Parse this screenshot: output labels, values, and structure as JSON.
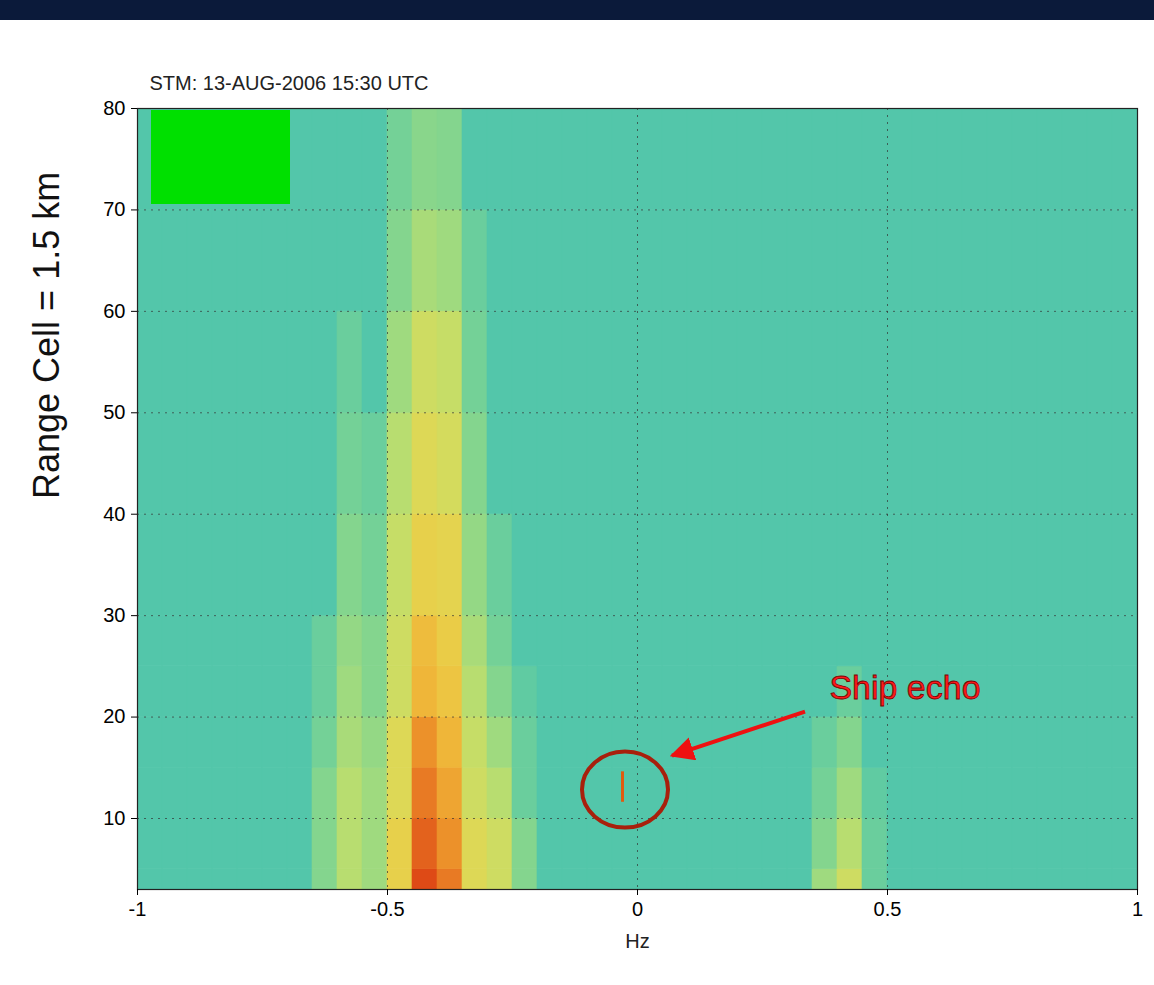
{
  "chart_data": {
    "type": "heatmap",
    "title": "STM: 13-AUG-2006 15:30 UTC",
    "x_label": "Hz",
    "y_label": "Range Cell = 1.5 km",
    "xlim": [
      -1,
      1
    ],
    "xticks": [
      -1,
      -0.5,
      0,
      0.5,
      1
    ],
    "ylim": [
      3,
      80
    ],
    "yticks": [
      10,
      20,
      30,
      40,
      50,
      60,
      70,
      80
    ],
    "grid": true,
    "x_bins": [
      -1,
      -0.95,
      -0.9,
      -0.85,
      -0.8,
      -0.75,
      -0.7,
      -0.65,
      -0.6,
      -0.55,
      -0.5,
      -0.45,
      -0.4,
      -0.35,
      -0.3,
      -0.25,
      -0.2,
      -0.15,
      -0.1,
      -0.05,
      0,
      0.05,
      0.1,
      0.15,
      0.2,
      0.25,
      0.3,
      0.35,
      0.4,
      0.45,
      0.5,
      0.55,
      0.6,
      0.65,
      0.7,
      0.75,
      0.8,
      0.85,
      0.9,
      0.95,
      1
    ],
    "y_bins": [
      3,
      5,
      10,
      15,
      20,
      25,
      30,
      40,
      50,
      60,
      70,
      80
    ],
    "cells": [
      [
        2.5,
        2.5,
        2.5,
        2.5,
        2.5,
        2.5,
        2.5,
        3.5,
        4.5,
        4,
        6,
        9.5,
        8.5,
        5.5,
        5,
        3.5,
        2.5,
        2.5,
        2.5,
        2.5,
        2.5,
        2.5,
        2.5,
        2.5,
        2.5,
        2.5,
        2.5,
        4,
        5,
        3,
        2.5,
        2.5,
        2.5,
        2.5,
        2.5,
        2.5,
        2.5,
        2.5,
        2.5,
        2.5
      ],
      [
        2.5,
        2.5,
        2.5,
        2.5,
        2.5,
        2.5,
        2.5,
        3.5,
        4.5,
        4,
        6,
        9,
        8,
        5.5,
        5,
        3.5,
        2.5,
        2.5,
        2.5,
        2.5,
        2.5,
        2.5,
        2.5,
        2.5,
        2.5,
        2.5,
        2.5,
        3.5,
        4.5,
        3,
        2.5,
        2.5,
        2.5,
        2.5,
        2.5,
        2.5,
        2.5,
        2.5,
        2.5,
        2.5
      ],
      [
        2.5,
        2.5,
        2.5,
        2.5,
        2.5,
        2.5,
        2.5,
        3.5,
        4.5,
        4,
        5.5,
        8.5,
        7.5,
        5,
        4.5,
        3,
        2.5,
        2.5,
        2.5,
        2.5,
        2.5,
        2.5,
        2.5,
        2.5,
        2.5,
        2.5,
        2.5,
        3.2,
        4,
        2.8,
        2.5,
        2.5,
        2.5,
        2.5,
        2.5,
        2.5,
        2.5,
        2.5,
        2.5,
        2.5
      ],
      [
        2.5,
        2.5,
        2.5,
        2.5,
        2.5,
        2.5,
        2.5,
        3.2,
        4.2,
        3.8,
        5.5,
        8,
        7,
        4.8,
        4,
        3,
        2.5,
        2.5,
        2.5,
        2.5,
        2.5,
        2.5,
        2.5,
        2.5,
        2.5,
        2.5,
        2.5,
        3,
        3.5,
        2.5,
        2.5,
        2.5,
        2.5,
        2.5,
        2.5,
        2.5,
        2.5,
        2.5,
        2.5,
        2.5
      ],
      [
        2.5,
        2.5,
        2.5,
        2.5,
        2.5,
        2.5,
        2.5,
        3,
        4,
        3.5,
        5,
        7,
        6.5,
        4.5,
        3.5,
        2.8,
        2.5,
        2.5,
        2.5,
        2.5,
        2.5,
        2.5,
        2.5,
        2.5,
        2.5,
        2.5,
        2.5,
        2.5,
        3,
        2.5,
        2.5,
        2.5,
        2.5,
        2.5,
        2.5,
        2.5,
        2.5,
        2.5,
        2.5,
        2.5
      ],
      [
        2.5,
        2.5,
        2.5,
        2.5,
        2.5,
        2.5,
        2.5,
        3,
        3.8,
        3.5,
        5,
        6.8,
        6.2,
        4.2,
        3.2,
        2.5,
        2.5,
        2.5,
        2.5,
        2.5,
        2.5,
        2.5,
        2.5,
        2.5,
        2.5,
        2.5,
        2.5,
        2.5,
        2.5,
        2.5,
        2.5,
        2.5,
        2.5,
        2.5,
        2.5,
        2.5,
        2.5,
        2.5,
        2.5,
        2.5
      ],
      [
        2.5,
        2.5,
        2.5,
        2.5,
        2.5,
        2.5,
        2.5,
        2.5,
        3.5,
        3.2,
        4.8,
        6,
        5.8,
        3.8,
        3,
        2.5,
        2.5,
        2.5,
        2.5,
        2.5,
        2.5,
        2.5,
        2.5,
        2.5,
        2.5,
        2.5,
        2.5,
        2.5,
        2.5,
        2.5,
        2.5,
        2.5,
        2.5,
        2.5,
        2.5,
        2.5,
        2.5,
        2.5,
        2.5,
        2.5
      ],
      [
        2.5,
        2.5,
        2.5,
        2.5,
        2.5,
        2.5,
        2.5,
        2.5,
        3.2,
        3,
        4.5,
        5.5,
        5.2,
        3.5,
        2.5,
        2.5,
        2.5,
        2.5,
        2.5,
        2.5,
        2.5,
        2.5,
        2.5,
        2.5,
        2.5,
        2.5,
        2.5,
        2.5,
        2.5,
        2.5,
        2.5,
        2.5,
        2.5,
        2.5,
        2.5,
        2.5,
        2.5,
        2.5,
        2.5,
        2.5
      ],
      [
        2.5,
        2.5,
        2.5,
        2.5,
        2.5,
        2.5,
        2.5,
        2.5,
        3,
        2.5,
        4,
        5,
        4.8,
        3.2,
        2.5,
        2.5,
        2.5,
        2.5,
        2.5,
        2.5,
        2.5,
        2.5,
        2.5,
        2.5,
        2.5,
        2.5,
        2.5,
        2.5,
        2.5,
        2.5,
        2.5,
        2.5,
        2.5,
        2.5,
        2.5,
        2.5,
        2.5,
        2.5,
        2.5,
        2.5
      ],
      [
        2.5,
        2.5,
        2.5,
        2.5,
        2.5,
        2.5,
        2.5,
        2.5,
        2.5,
        2.5,
        3.5,
        4.2,
        4,
        3,
        2.5,
        2.5,
        2.5,
        2.5,
        2.5,
        2.5,
        2.5,
        2.5,
        2.5,
        2.5,
        2.5,
        2.5,
        2.5,
        2.5,
        2.5,
        2.5,
        2.5,
        2.5,
        2.5,
        2.5,
        2.5,
        2.5,
        2.5,
        2.5,
        2.5,
        2.5
      ],
      [
        2.5,
        2.5,
        2.5,
        2.5,
        2.5,
        2.5,
        2.5,
        2.5,
        2.5,
        2.5,
        3.2,
        3.6,
        3.5,
        2.5,
        2.5,
        2.5,
        2.5,
        2.5,
        2.5,
        2.5,
        2.5,
        2.5,
        2.5,
        2.5,
        2.5,
        2.5,
        2.5,
        2.5,
        2.5,
        2.5,
        2.5,
        2.5,
        2.5,
        2.5,
        2.5,
        2.5,
        2.5,
        2.5,
        2.5,
        2.5
      ]
    ],
    "color_range": [
      0,
      10
    ],
    "colors": [
      "#1a9ad0",
      "#3cc8b4",
      "#e8ec5a",
      "#f5b030",
      "#d83010"
    ],
    "ship_echo": {
      "x": -0.03,
      "y": [
        11.6,
        14.6
      ],
      "color": "#e05a10"
    },
    "annotations": [
      {
        "text": "Ship echo",
        "color": "#ff1a1a"
      }
    ]
  }
}
